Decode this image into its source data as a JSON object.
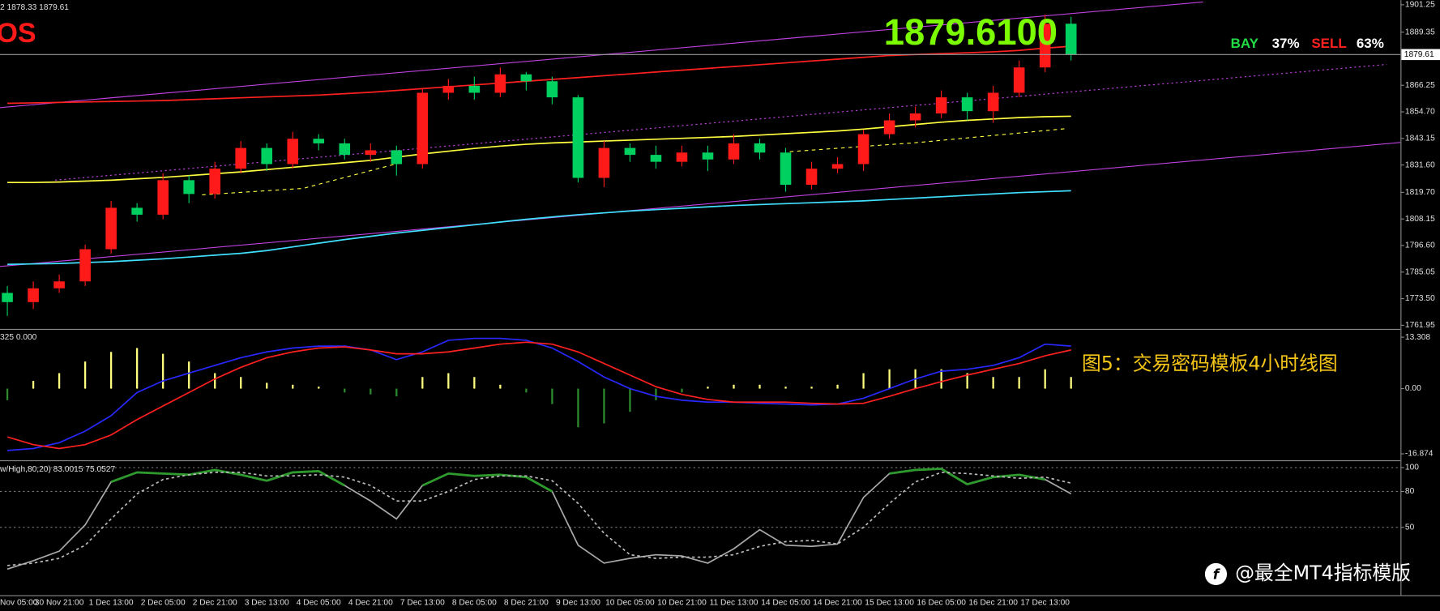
{
  "chart_data": [
    {
      "type": "candlestick",
      "info": "2 1878.33 1879.61",
      "label": "OS",
      "price_display": "1879.6100",
      "bay_label": "BAY",
      "bay_pct": "37%",
      "sell_label": "SELL",
      "sell_pct": "63%",
      "categories": [
        "Nov 05:00",
        null,
        "30 Nov 21:00",
        null,
        "1 Dec 13:00",
        null,
        "2 Dec 05:00",
        null,
        "2 Dec 21:00",
        null,
        "3 Dec 13:00",
        null,
        "4 Dec 05:00",
        null,
        "4 Dec 21:00",
        null,
        "7 Dec 13:00",
        null,
        "8 Dec 05:00",
        null,
        "8 Dec 21:00",
        null,
        "9 Dec 13:00",
        null,
        "10 Dec 05:00",
        null,
        "10 Dec 21:00",
        null,
        "11 Dec 13:00",
        null,
        "14 Dec 05:00",
        null,
        "14 Dec 21:00",
        null,
        "15 Dec 13:00",
        null,
        "16 Dec 05:00",
        null,
        "16 Dec 21:00",
        null,
        "17 Dec 13:00",
        null
      ],
      "open": [
        1776,
        1772,
        1778,
        1781,
        1795,
        1813,
        1810,
        1825,
        1819,
        1830,
        1839,
        1832,
        1843,
        1841,
        1836,
        1838,
        1832,
        1863,
        1866,
        1863,
        1871,
        1868,
        1861,
        1826,
        1839,
        1836,
        1833,
        1837,
        1834,
        1841,
        1837,
        1823,
        1830,
        1832,
        1845,
        1851,
        1854,
        1861,
        1855,
        1863,
        1874,
        1893
      ],
      "high": [
        1779,
        1781,
        1784,
        1797,
        1816,
        1815,
        1828,
        1827,
        1833,
        1842,
        1841,
        1846,
        1845,
        1843,
        1841,
        1840,
        1865,
        1869,
        1870,
        1874,
        1872,
        1870,
        1862,
        1842,
        1841,
        1840,
        1840,
        1840,
        1845,
        1843,
        1839,
        1833,
        1835,
        1847,
        1854,
        1857,
        1864,
        1863,
        1866,
        1877,
        1897,
        1896
      ],
      "low": [
        1766,
        1769,
        1776,
        1779,
        1793,
        1807,
        1808,
        1815,
        1817,
        1828,
        1829,
        1830,
        1838,
        1834,
        1833,
        1827,
        1830,
        1860,
        1860,
        1861,
        1864,
        1858,
        1824,
        1822,
        1833,
        1830,
        1831,
        1829,
        1832,
        1834,
        1820,
        1821,
        1828,
        1829,
        1843,
        1848,
        1852,
        1851,
        1850,
        1861,
        1872,
        1877
      ],
      "close": [
        1772,
        1778,
        1781,
        1795,
        1813,
        1810,
        1825,
        1819,
        1830,
        1839,
        1832,
        1843,
        1841,
        1836,
        1838,
        1832,
        1863,
        1866,
        1863,
        1871,
        1868,
        1861,
        1826,
        1839,
        1836,
        1833,
        1837,
        1834,
        1841,
        1837,
        1823,
        1830,
        1832,
        1845,
        1851,
        1854,
        1861,
        1855,
        1863,
        1874,
        1893,
        1879.61
      ],
      "up_color": "#ff1a1a",
      "down_color": "#00d060",
      "last_price": 1879.61,
      "series": [
        {
          "color": "#ff2020",
          "values": [
            1858.4,
            1858.6,
            1858.8,
            1859,
            1859.2,
            1859.4,
            1859.6,
            1860,
            1860.4,
            1860.8,
            1861.2,
            1861.6,
            1862,
            1862.6,
            1863.2,
            1864,
            1864.8,
            1865.6,
            1866.4,
            1867.2,
            1868,
            1868.8,
            1869.6,
            1870.4,
            1871.2,
            1872,
            1872.8,
            1873.6,
            1874.4,
            1875.2,
            1876,
            1876.8,
            1877.6,
            1878.4,
            1879.2,
            1879.6,
            1880,
            1880.4,
            1880.8,
            1881.4,
            1882.4,
            1883.2
          ]
        },
        {
          "color": "#ffff40",
          "values": [
            1824,
            1824,
            1824.2,
            1824.6,
            1825,
            1825.6,
            1826.2,
            1827,
            1827.8,
            1828.6,
            1829.6,
            1830.6,
            1831.6,
            1832.6,
            1833.6,
            1835,
            1836.4,
            1837.6,
            1838.8,
            1839.8,
            1840.6,
            1841.2,
            1841.6,
            1842,
            1842.4,
            1842.8,
            1843.2,
            1843.6,
            1844,
            1844.6,
            1845.2,
            1845.8,
            1846.4,
            1847.2,
            1848.2,
            1849.2,
            1850.2,
            1851,
            1851.6,
            1852.2,
            1852.6,
            1852.8
          ]
        },
        {
          "color": "#40e0ff",
          "values": [
            1788.4,
            1788.6,
            1788.8,
            1789.2,
            1789.6,
            1790.2,
            1790.8,
            1791.6,
            1792.4,
            1793.2,
            1794.4,
            1796,
            1797.6,
            1799.2,
            1800.6,
            1802,
            1803.2,
            1804.4,
            1805.6,
            1806.8,
            1808,
            1809,
            1810,
            1810.8,
            1811.6,
            1812.2,
            1812.8,
            1813.4,
            1814,
            1814.4,
            1814.8,
            1815.2,
            1815.6,
            1816,
            1816.6,
            1817.2,
            1817.8,
            1818.4,
            1819,
            1819.6,
            1820,
            1820.4
          ]
        }
      ],
      "ylim": [
        1760.75,
        1903.25
      ],
      "yticks": [
        1901.25,
        1889.35,
        1866.25,
        {
          "value": 1854.7,
          "label": "1854.70"
        },
        1843.15,
        {
          "value": 1831.6,
          "label": "1831.60"
        },
        {
          "value": 1819.7,
          "label": "1819.70"
        },
        1808.15,
        {
          "value": 1796.6,
          "label": "1796.60"
        },
        1785.05,
        {
          "value": 1773.5,
          "label": "1773.50"
        },
        1761.95
      ],
      "grid": false
    },
    {
      "type": "macd",
      "info": "325 0.000",
      "values": [
        -3,
        2,
        4,
        7,
        9.5,
        10.5,
        9,
        7,
        4,
        3,
        1.5,
        1,
        0.5,
        -1,
        -1.5,
        -2,
        3,
        4,
        3,
        1,
        -1,
        -4,
        -10,
        -9,
        -6,
        -3,
        -1,
        0.5,
        1,
        1,
        0.5,
        0.5,
        1,
        4,
        5,
        5,
        5,
        4,
        3,
        3,
        5,
        3
      ],
      "pos_color": "#ffff80",
      "neg_color": "#2e8b2e",
      "series": [
        {
          "color": "#2828ff",
          "values": [
            -16,
            -15.5,
            -14,
            -11,
            -7,
            -1,
            2,
            4,
            6,
            8,
            9.5,
            10.5,
            11,
            11,
            10,
            7.5,
            9.5,
            12.5,
            13,
            13,
            12.5,
            10.5,
            7,
            3,
            0,
            -2,
            -3,
            -3.5,
            -3.5,
            -3.8,
            -4,
            -4.2,
            -4,
            -2.5,
            0,
            2.5,
            4.5,
            5,
            6,
            8,
            11.5,
            11
          ]
        },
        {
          "color": "#ff2020",
          "values": [
            -12.5,
            -14.5,
            -15.5,
            -14.5,
            -12,
            -8,
            -4.5,
            -1,
            2.5,
            5.5,
            8,
            9.5,
            10.5,
            10.8,
            10,
            9,
            9,
            9.5,
            10.5,
            11.5,
            12,
            11.5,
            9.5,
            6.5,
            3.5,
            0.5,
            -1.5,
            -2.8,
            -3.5,
            -3.5,
            -3.5,
            -3.8,
            -4,
            -3.8,
            -2,
            0,
            1.8,
            3.5,
            5,
            6.5,
            8.5,
            10
          ]
        }
      ],
      "ylim": [
        -18.06,
        14.97
      ],
      "yticks": [
        13.308,
        {
          "value": 0,
          "label": "0.00"
        },
        -16.874
      ],
      "grid": false
    },
    {
      "type": "line",
      "info": "w/High,80,20) 83.0015 75.0527",
      "overbought": 80,
      "overbought_color": "#2e9a2e",
      "series": [
        {
          "color": "#a9a9a9",
          "values": [
            15,
            22,
            30,
            52,
            88,
            96,
            95,
            94,
            98,
            94,
            89,
            96,
            97,
            85,
            72,
            57,
            85,
            95,
            93,
            94,
            92,
            80,
            35,
            20,
            24,
            27,
            26,
            20,
            32,
            48,
            35,
            34,
            36,
            75,
            95,
            98,
            99,
            86,
            92,
            94,
            90,
            78
          ]
        },
        {
          "color": "#bbbbbb",
          "dash": true,
          "values": [
            18,
            20,
            24,
            35,
            57,
            78,
            90,
            94,
            96,
            96,
            93,
            93,
            94,
            92,
            85,
            72,
            72,
            80,
            90,
            93,
            93,
            89,
            70,
            45,
            27,
            24,
            25,
            25,
            27,
            34,
            38,
            39,
            36,
            50,
            70,
            88,
            96,
            95,
            93,
            91,
            92,
            87
          ]
        }
      ],
      "ylim": [
        -6.9,
        104.6
      ],
      "yticks": [
        100,
        80,
        50
      ],
      "grid": true
    }
  ],
  "caption": "图5：交易密码模板4小时线图",
  "watermark": "@最全MT4指标模版"
}
